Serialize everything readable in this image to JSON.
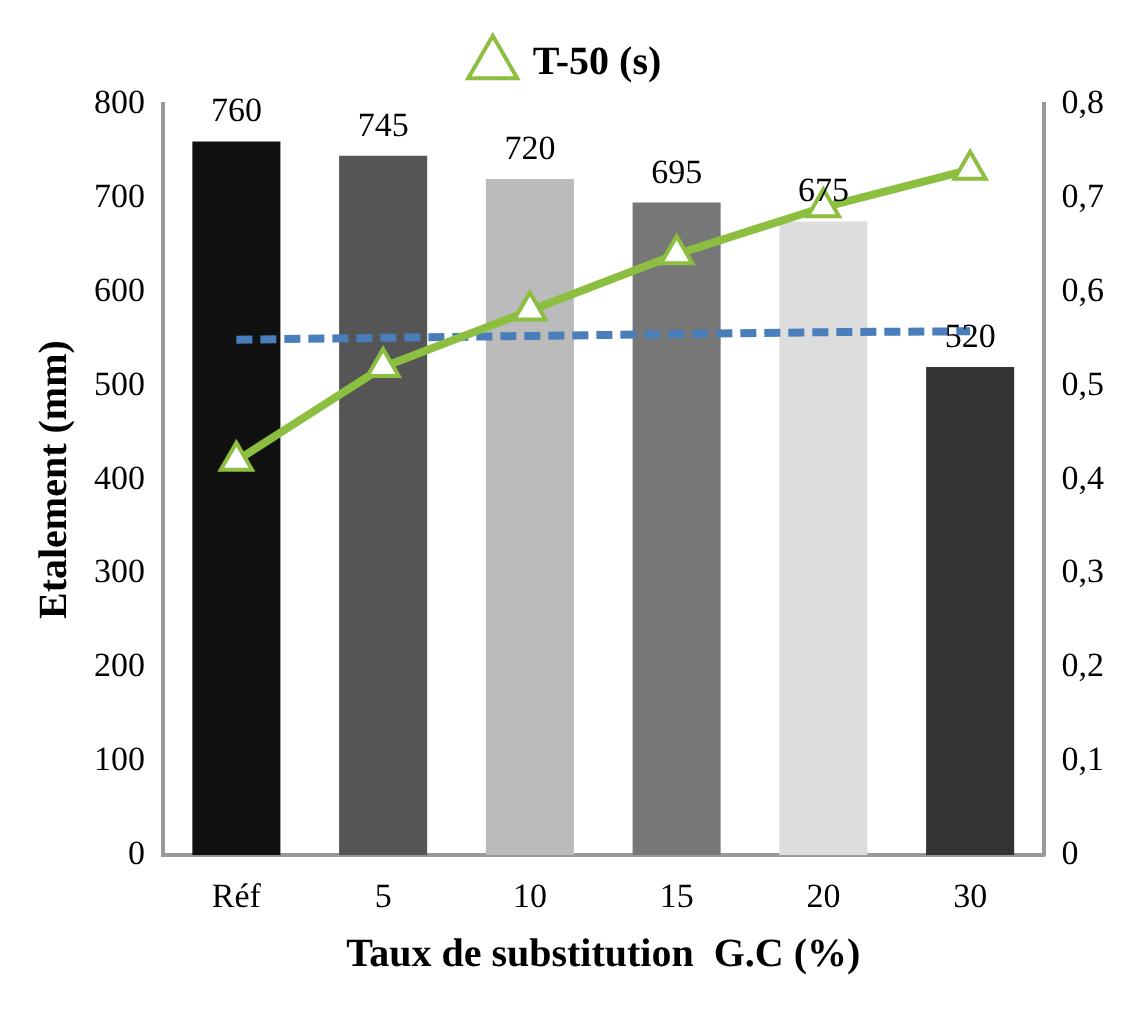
{
  "chart_data": {
    "type": "bar",
    "xlabel": "Taux de substitution  G.C (%)",
    "ylabel": "Etalement (mm)",
    "categories": [
      "Réf",
      "5",
      "10",
      "15",
      "20",
      "30"
    ],
    "series": [
      {
        "colors": [
          "#111111",
          "#555555",
          "#bbbbbb",
          "#777777",
          "#dddddd",
          "#333333"
        ],
        "values": [
          760,
          745,
          720,
          695,
          675,
          520
        ],
        "value_labels": [
          "760",
          "745",
          "720",
          "695",
          "675",
          "520"
        ]
      },
      {
        "type": "line",
        "name": "T-50 (s)",
        "color": "#8cbf3f",
        "axis": "y2",
        "marker": "triangle",
        "values": [
          0.42,
          0.52,
          0.58,
          0.64,
          0.69,
          0.73
        ]
      },
      {
        "type": "line",
        "color": "#4a7ebb",
        "line_style": "dashed",
        "marker": "none",
        "values": [
          549,
          551,
          553,
          555,
          557,
          558
        ]
      }
    ],
    "ylim": [
      0,
      800
    ],
    "yticks": [
      0,
      100,
      200,
      300,
      400,
      500,
      600,
      700,
      800
    ],
    "y2lim": [
      0,
      0.8
    ],
    "y2ticks": [
      {
        "value": 0,
        "label": "0"
      },
      {
        "value": 0.1,
        "label": "0,1"
      },
      {
        "value": 0.2,
        "label": "0,2"
      },
      {
        "value": 0.3,
        "label": "0,3"
      },
      {
        "value": 0.4,
        "label": "0,4"
      },
      {
        "value": 0.5,
        "label": "0,5"
      },
      {
        "value": 0.6,
        "label": "0,6"
      },
      {
        "value": 0.7,
        "label": "0,7"
      },
      {
        "value": 0.8,
        "label": "0,8"
      }
    ],
    "grid": false,
    "legend": "top"
  }
}
